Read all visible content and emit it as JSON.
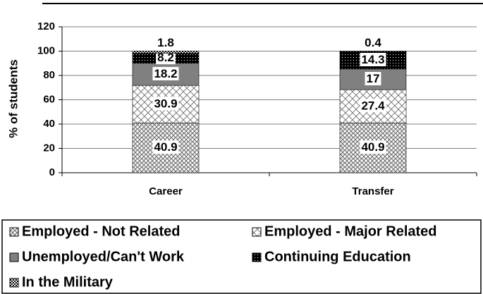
{
  "chart_data": {
    "type": "stacked_bar",
    "y_label": "% of students",
    "categories": [
      "Career",
      "Transfer"
    ],
    "series": [
      {
        "name": "Employed - Not Related",
        "color": "#808080",
        "values": [
          40.9,
          40.9
        ]
      },
      {
        "name": "Employed - Major Related",
        "color": "#c0c0c0",
        "values": [
          30.9,
          27.4
        ]
      },
      {
        "name": "Unemployed/Can't Work",
        "color": "#808080",
        "values": [
          18.2,
          17
        ]
      },
      {
        "name": "Continuing Education",
        "color": "#000000",
        "values": [
          8.2,
          14.3
        ]
      },
      {
        "name": "In the Military",
        "color": "#000000",
        "values": [
          1.8,
          0.4
        ]
      }
    ],
    "ylim": [
      0,
      120
    ],
    "yticks": [
      0,
      20,
      40,
      60,
      80,
      100,
      120
    ],
    "grid": true,
    "legend": "bottom"
  }
}
